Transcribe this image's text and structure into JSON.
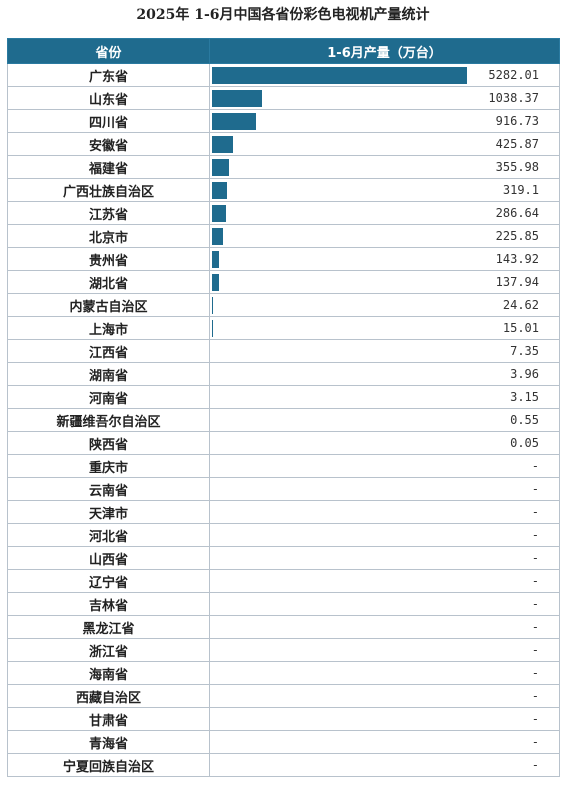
{
  "title": "2025年 1-6月中国各省份彩色电视机产量统计",
  "header": {
    "province": "省份",
    "value": "1-6月产量（万台）"
  },
  "chart_data": {
    "type": "bar",
    "title": "2025年 1-6月中国各省份彩色电视机产量统计",
    "categories": [
      "广东省",
      "山东省",
      "四川省",
      "安徽省",
      "福建省",
      "广西壮族自治区",
      "江苏省",
      "北京市",
      "贵州省",
      "湖北省",
      "内蒙古自治区",
      "上海市",
      "江西省",
      "湖南省",
      "河南省",
      "新疆维吾尔自治区",
      "陕西省",
      "重庆市",
      "云南省",
      "天津市",
      "河北省",
      "山西省",
      "辽宁省",
      "吉林省",
      "黑龙江省",
      "浙江省",
      "海南省",
      "西藏自治区",
      "甘肃省",
      "青海省",
      "宁夏回族自治区"
    ],
    "series": [
      {
        "values": [
          5282.01,
          1038.37,
          916.73,
          425.87,
          355.98,
          319.1,
          286.64,
          225.85,
          143.92,
          137.94,
          24.62,
          15.01,
          7.35,
          3.96,
          3.15,
          0.55,
          0.05,
          null,
          null,
          null,
          null,
          null,
          null,
          null,
          null,
          null,
          null,
          null,
          null,
          null,
          null
        ],
        "labels": [
          "5282.01",
          "1038.37",
          "916.73",
          "425.87",
          "355.98",
          "319.1",
          "286.64",
          "225.85",
          "143.92",
          "137.94",
          "24.62",
          "15.01",
          "7.35",
          "3.96",
          "3.15",
          "0.55",
          "0.05",
          "-",
          "-",
          "-",
          "-",
          "-",
          "-",
          "-",
          "-",
          "-",
          "-",
          "-",
          "-",
          "-",
          "-"
        ]
      }
    ],
    "orientation": "horizontal",
    "bar_color": "#1f6b8e"
  }
}
